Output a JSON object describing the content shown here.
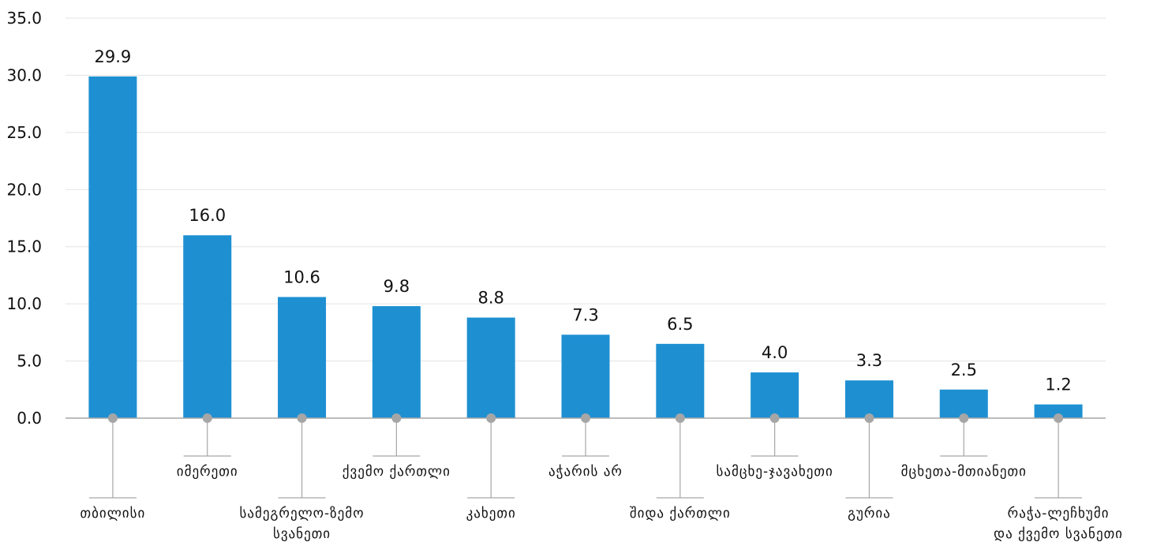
{
  "chart_data": {
    "type": "bar",
    "categories": [
      "თბილისი",
      "იმერეთი",
      "სამეგრელო-ზემო სვანეთი",
      "ქვემო ქართლი",
      "კახეთი",
      "აჭარის არ",
      "შიდა ქართლი",
      "სამცხე-ჯავახეთი",
      "გურია",
      "მცხეთა-მთიანეთი",
      "რაჭა-ლეჩხუმი და ქვემო სვანეთი"
    ],
    "category_lines": [
      [
        "თბილისი"
      ],
      [
        "იმერეთი"
      ],
      [
        "სამეგრელო-ზემო",
        "სვანეთი"
      ],
      [
        "ქვემო ქართლი"
      ],
      [
        "კახეთი"
      ],
      [
        "აჭარის არ"
      ],
      [
        "შიდა ქართლი"
      ],
      [
        "სამცხე-ჯავახეთი"
      ],
      [
        "გურია"
      ],
      [
        "მცხეთა-მთიანეთი"
      ],
      [
        "რაჭა-ლეჩხუმი",
        "და ქვემო სვანეთი"
      ]
    ],
    "values": [
      29.9,
      16.0,
      10.6,
      9.8,
      8.8,
      7.3,
      6.5,
      4.0,
      3.3,
      2.5,
      1.2
    ],
    "value_labels": [
      "29.9",
      "16.0",
      "10.6",
      "9.8",
      "8.8",
      "7.3",
      "6.5",
      "4.0",
      "3.3",
      "2.5",
      "1.2"
    ],
    "label_levels": [
      2,
      1,
      2,
      1,
      2,
      1,
      2,
      1,
      2,
      1,
      2
    ],
    "yticks": [
      "0.0",
      "5.0",
      "10.0",
      "15.0",
      "20.0",
      "25.0",
      "30.0",
      "35.0"
    ],
    "ylim": [
      0,
      35
    ],
    "grid": true,
    "bar_color": "#1e90d2",
    "grid_color": "#e3e3e3",
    "axis_color": "#a6a6a6",
    "leader_color": "#a6a6a6",
    "dot_color": "#a6a6a6"
  }
}
